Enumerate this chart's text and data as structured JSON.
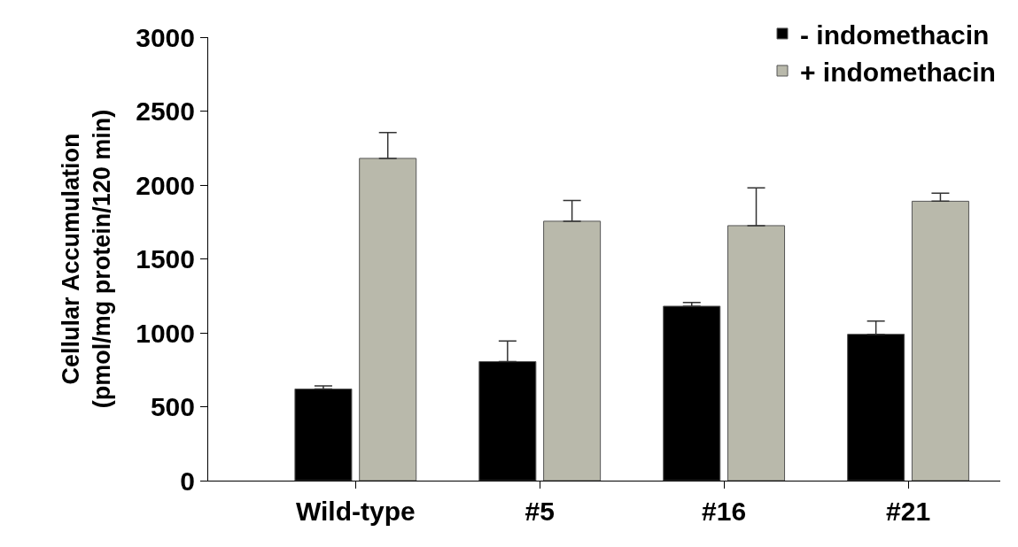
{
  "chart_data": {
    "type": "bar",
    "ylabel": "Cellular Accumulation\n(pmol/mg protein/120 min)",
    "categories": [
      "Wild-type",
      "#5",
      "#16",
      "#21"
    ],
    "series": [
      {
        "name": "- indomethacin",
        "color": "#000000",
        "values": [
          620,
          805,
          1180,
          990
        ],
        "errors": [
          [
            620,
            640
          ],
          [
            805,
            945
          ],
          [
            1180,
            1205
          ],
          [
            990,
            1080
          ]
        ]
      },
      {
        "name": "+ indomethacin",
        "color": "#b9b9ab",
        "values": [
          2180,
          1755,
          1725,
          1890
        ],
        "errors": [
          [
            2180,
            2355
          ],
          [
            1755,
            1895
          ],
          [
            1725,
            1980
          ],
          [
            1890,
            1945
          ]
        ]
      }
    ],
    "ylim": [
      0,
      3000
    ],
    "yticks": [
      0,
      500,
      1000,
      1500,
      2000,
      2500,
      3000
    ],
    "grid": false,
    "legend": "top right"
  }
}
